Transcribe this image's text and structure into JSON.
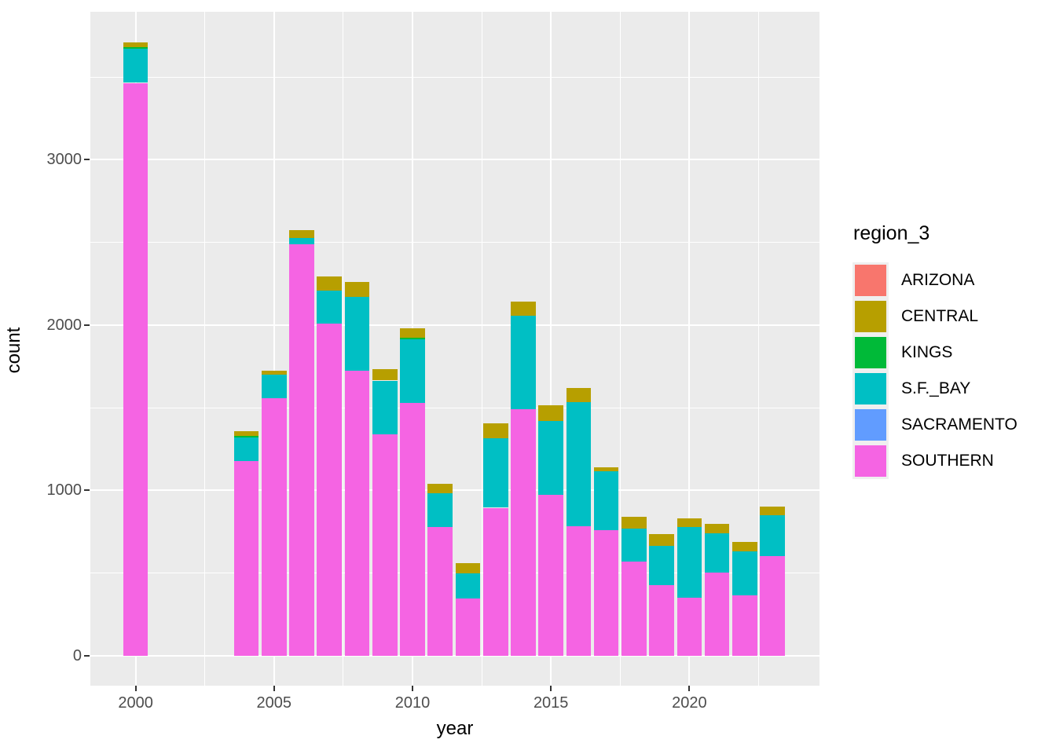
{
  "chart_data": {
    "type": "bar",
    "stacked": true,
    "title": "",
    "xlabel": "year",
    "ylabel": "count",
    "legend_title": "region_3",
    "legend_position": "right",
    "grid": true,
    "x_ticks": [
      2000,
      2005,
      2010,
      2015,
      2020
    ],
    "x_minor_ticks": [
      2002.5,
      2007.5,
      2012.5,
      2017.5,
      2022.5
    ],
    "y_ticks": [
      0,
      1000,
      2000,
      3000
    ],
    "y_minor_ticks": [
      500,
      1500,
      2500,
      3500
    ],
    "xlim": [
      1998.35,
      2024.7
    ],
    "ylim": [
      -195,
      3900
    ],
    "bar_width_years": 0.9,
    "x": [
      2000,
      2004,
      2005,
      2006,
      2007,
      2008,
      2009,
      2010,
      2011,
      2012,
      2013,
      2014,
      2015,
      2016,
      2017,
      2018,
      2019,
      2020,
      2021,
      2022,
      2023
    ],
    "series": [
      {
        "name": "SOUTHERN",
        "color": "#F564E3",
        "values": [
          3465,
          1180,
          1560,
          2490,
          2010,
          1725,
          1340,
          1530,
          780,
          345,
          895,
          1490,
          975,
          785,
          760,
          570,
          430,
          350,
          505,
          365,
          605
        ]
      },
      {
        "name": "SACRAMENTO",
        "color": "#619CFF",
        "values": [
          0,
          0,
          0,
          0,
          0,
          0,
          0,
          0,
          0,
          0,
          0,
          0,
          0,
          0,
          0,
          0,
          0,
          0,
          0,
          0,
          0
        ]
      },
      {
        "name": "S.F._BAY",
        "color": "#00BFC4",
        "values": [
          205,
          140,
          140,
          35,
          200,
          445,
          325,
          385,
          205,
          155,
          420,
          565,
          445,
          750,
          355,
          200,
          235,
          430,
          235,
          265,
          245
        ]
      },
      {
        "name": "KINGS",
        "color": "#00BA38",
        "values": [
          10,
          10,
          0,
          0,
          0,
          0,
          0,
          10,
          0,
          0,
          0,
          0,
          0,
          0,
          0,
          0,
          0,
          0,
          0,
          0,
          0
        ]
      },
      {
        "name": "CENTRAL",
        "color": "#B79F00",
        "values": [
          30,
          30,
          25,
          50,
          85,
          90,
          70,
          55,
          55,
          60,
          90,
          85,
          95,
          85,
          25,
          70,
          70,
          50,
          60,
          60,
          55
        ]
      },
      {
        "name": "ARIZONA",
        "color": "#F8766D",
        "values": [
          0,
          0,
          0,
          0,
          0,
          0,
          0,
          0,
          0,
          0,
          0,
          0,
          0,
          0,
          0,
          0,
          0,
          0,
          0,
          0,
          0
        ]
      }
    ],
    "legend": [
      {
        "label": "ARIZONA",
        "color": "#F8766D"
      },
      {
        "label": "CENTRAL",
        "color": "#B79F00"
      },
      {
        "label": "KINGS",
        "color": "#00BA38"
      },
      {
        "label": "S.F._BAY",
        "color": "#00BFC4"
      },
      {
        "label": "SACRAMENTO",
        "color": "#619CFF"
      },
      {
        "label": "SOUTHERN",
        "color": "#F564E3"
      }
    ]
  },
  "colors": {
    "panel_background": "#EBEBEB",
    "plot_background": "#FFFFFF",
    "grid_major": "#FFFFFF",
    "grid_minor": "#FFFFFF",
    "tick_mark": "#333333",
    "tick_label": "#4D4D4D",
    "axis_title": "#000000",
    "legend_key_background": "#EFEFEF"
  }
}
